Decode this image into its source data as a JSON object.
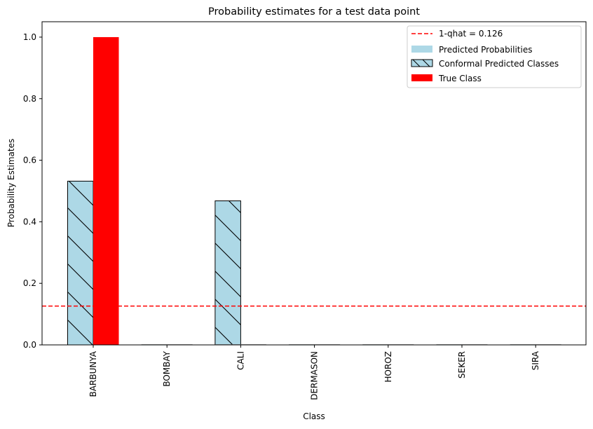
{
  "chart_data": {
    "type": "bar",
    "title": "Probability estimates for a test data point",
    "xlabel": "Class",
    "ylabel": "Probability Estimates",
    "categories": [
      "BARBUNYA",
      "BOMBAY",
      "CALI",
      "DERMASON",
      "HOROZ",
      "SEKER",
      "SIRA"
    ],
    "ylim": [
      0.0,
      1.05
    ],
    "yticks": [
      "0.0",
      "0.2",
      "0.4",
      "0.6",
      "0.8",
      "1.0"
    ],
    "grid": false,
    "legend_position": "top-right",
    "series": [
      {
        "name": "Predicted Probabilities",
        "values": [
          0.532,
          0.0,
          0.468,
          0.0,
          0.0,
          0.0,
          0.0
        ],
        "color": "#add8e6"
      },
      {
        "name": "True Class",
        "values": [
          1.0,
          0.0,
          0.0,
          0.0,
          0.0,
          0.0,
          0.0
        ],
        "color": "#ff0000"
      }
    ],
    "conformal_set": {
      "name": "Conformal Predicted Classes",
      "classes": [
        "BARBUNYA",
        "CALI"
      ],
      "hatch": "\\"
    },
    "threshold": {
      "label": "1-qhat = 0.126",
      "value": 0.126,
      "color": "#ff0000",
      "style": "dashed"
    }
  }
}
